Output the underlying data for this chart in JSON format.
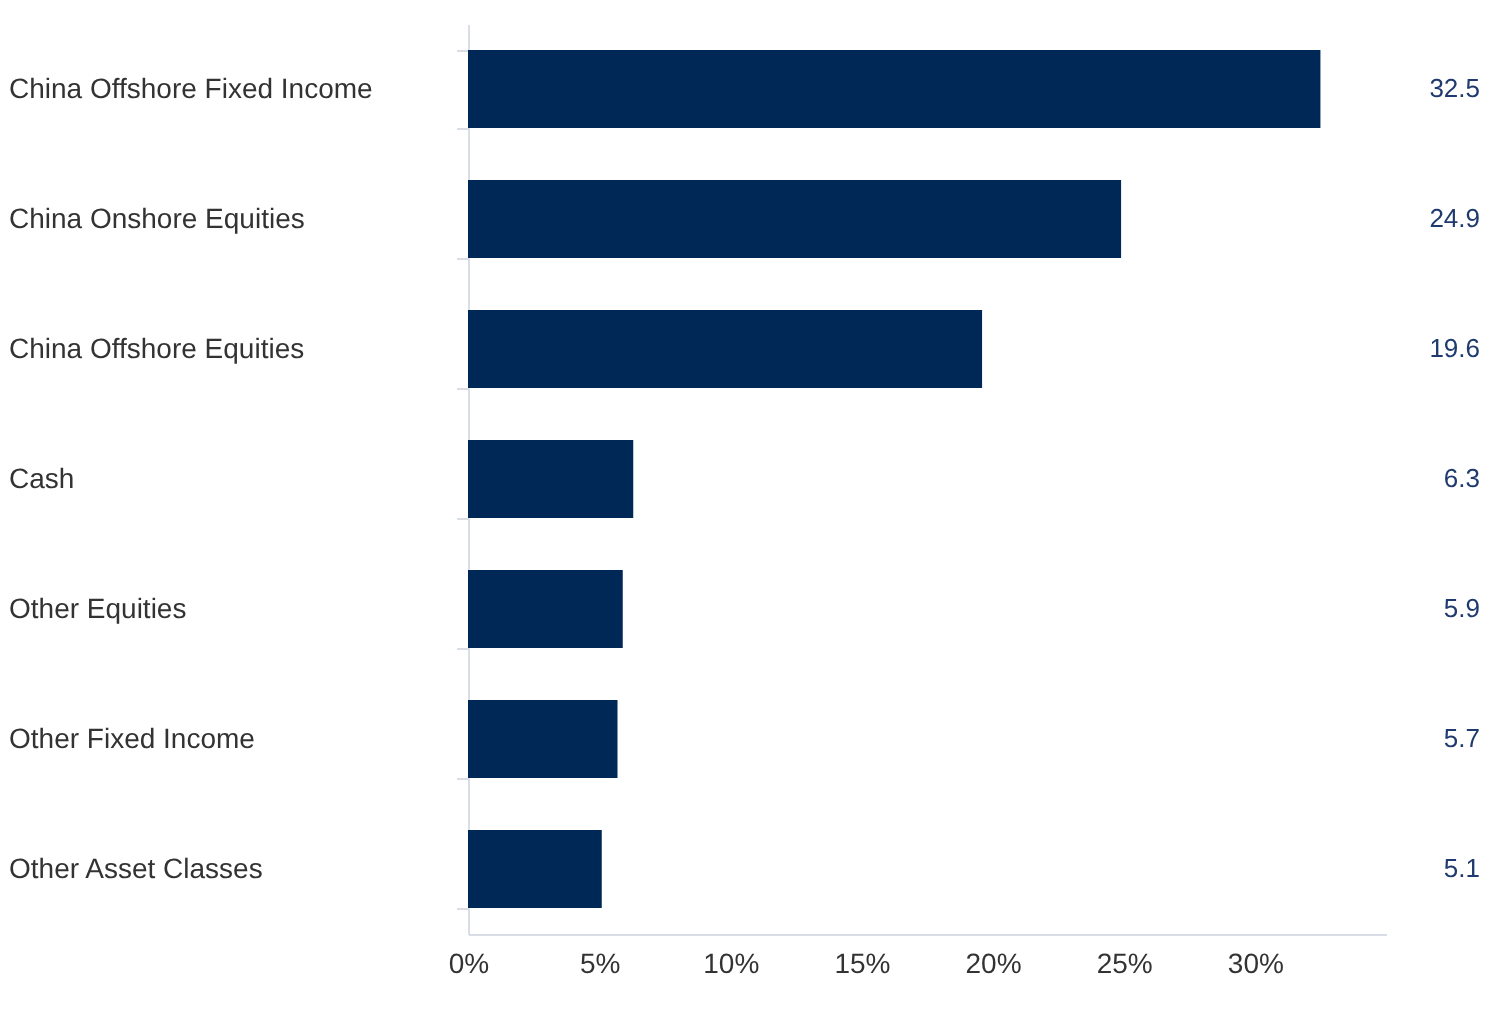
{
  "chart_data": {
    "type": "bar",
    "orientation": "horizontal",
    "categories": [
      "China Offshore Fixed Income",
      "China Onshore Equities",
      "China Offshore Equities",
      "Cash",
      "Other Equities",
      "Other Fixed Income",
      "Other Asset Classes"
    ],
    "values": [
      32.5,
      24.9,
      19.6,
      6.3,
      5.9,
      5.7,
      5.1
    ],
    "color": "#002856",
    "xlim": [
      0,
      35
    ],
    "xticks": [
      {
        "value": 0,
        "label": "0%"
      },
      {
        "value": 5,
        "label": "5%"
      },
      {
        "value": 10,
        "label": "10%"
      },
      {
        "value": 15,
        "label": "15%"
      },
      {
        "value": 20,
        "label": "20%"
      },
      {
        "value": 25,
        "label": "25%"
      },
      {
        "value": 30,
        "label": "30%"
      }
    ],
    "data_labels": true,
    "grid": false
  }
}
